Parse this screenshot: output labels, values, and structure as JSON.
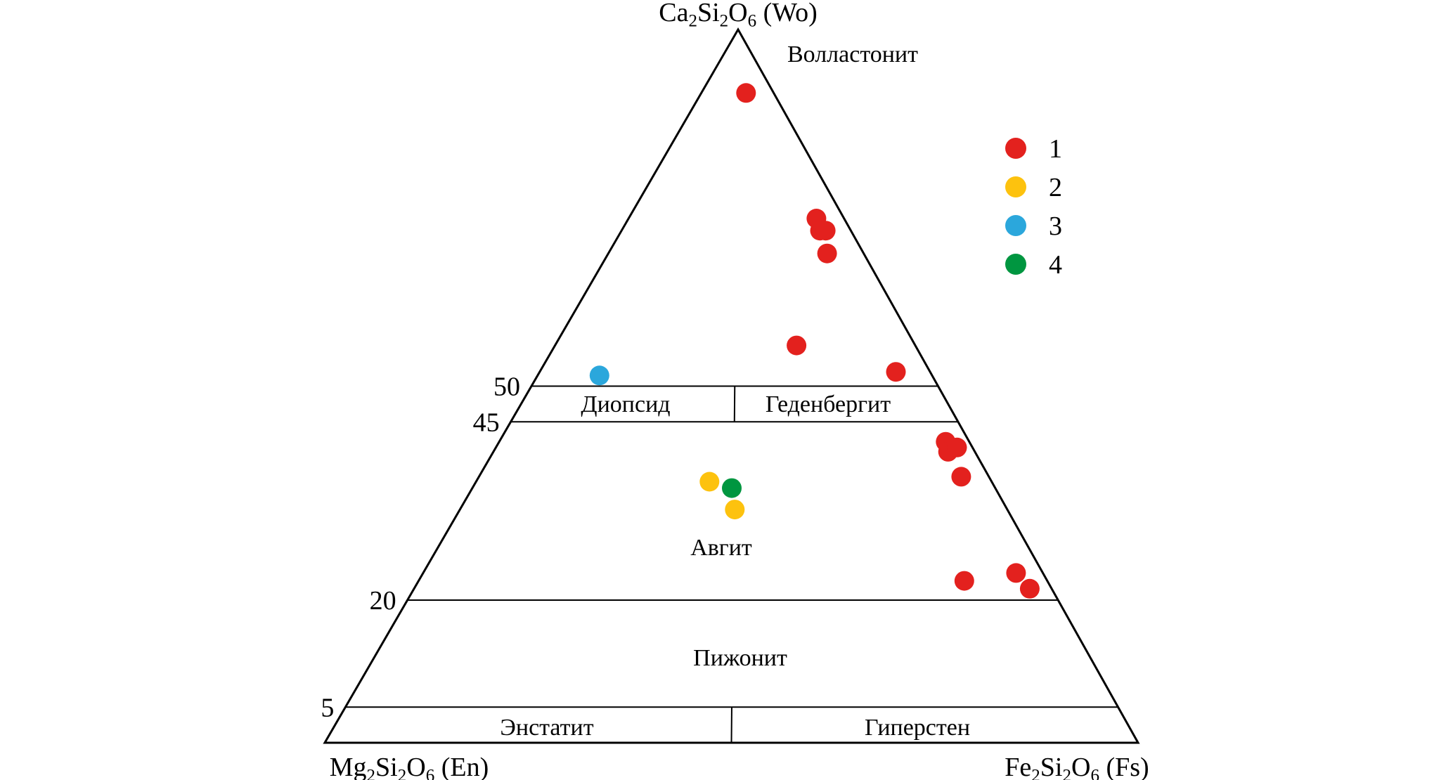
{
  "figure": {
    "background": "#ffffff",
    "text_color": "#000000",
    "line_color": "#000000"
  },
  "chart_data": {
    "type": "scatter",
    "subtype": "ternary",
    "description": "Pyroxene composition ternary diagram Wo-En-Fs",
    "vertices": {
      "top": {
        "text": "Ca2Si2O6 (Wo)",
        "parts": [
          {
            "t": "Ca"
          },
          {
            "t": "2",
            "sub": true
          },
          {
            "t": "Si"
          },
          {
            "t": "2",
            "sub": true
          },
          {
            "t": "O"
          },
          {
            "t": "6",
            "sub": true
          },
          {
            "t": " (Wo)"
          }
        ]
      },
      "left": {
        "text": "Mg2Si2O6 (En)",
        "parts": [
          {
            "t": "Mg"
          },
          {
            "t": "2",
            "sub": true
          },
          {
            "t": "Si"
          },
          {
            "t": "2",
            "sub": true
          },
          {
            "t": "O"
          },
          {
            "t": "6",
            "sub": true
          },
          {
            "t": " (En)"
          }
        ]
      },
      "right": {
        "text": "Fe2Si2O6 (Fs)",
        "parts": [
          {
            "t": "Fe"
          },
          {
            "t": "2",
            "sub": true
          },
          {
            "t": "Si"
          },
          {
            "t": "2",
            "sub": true
          },
          {
            "t": "O"
          },
          {
            "t": "6",
            "sub": true
          },
          {
            "t": " (Fs)"
          }
        ]
      }
    },
    "wo_gridlines": [
      50,
      45,
      20,
      5
    ],
    "boundaries": [
      {
        "from": {
          "wo": 50,
          "en": 25,
          "fs": 25
        },
        "to": {
          "wo": 45,
          "en": 27.5,
          "fs": 27.5
        }
      },
      {
        "from": {
          "wo": 5,
          "en": 47.5,
          "fs": 47.5
        },
        "to": {
          "wo": 0,
          "en": 50,
          "fs": 50
        }
      }
    ],
    "regions": [
      {
        "id": "wollastonite",
        "label": "Волластонит"
      },
      {
        "id": "diopside",
        "label": "Диопсид"
      },
      {
        "id": "hedenbergite",
        "label": "Геденбергит"
      },
      {
        "id": "augite",
        "label": "Авгит"
      },
      {
        "id": "pigeonite",
        "label": "Пижонит"
      },
      {
        "id": "enstatite",
        "label": "Энстатит"
      },
      {
        "id": "hypersthene",
        "label": "Гиперстен"
      }
    ],
    "legend": {
      "items": [
        {
          "label": "1",
          "color": "#e3211e"
        },
        {
          "label": "2",
          "color": "#fdc20e"
        },
        {
          "label": "3",
          "color": "#2ba7dc"
        },
        {
          "label": "4",
          "color": "#009640"
        }
      ]
    },
    "series": [
      {
        "name": "1",
        "color": "#e3211e",
        "points": [
          {
            "wo": 91.1,
            "en": 3.4,
            "fs": 5.5
          },
          {
            "wo": 73.5,
            "en": 3.4,
            "fs": 23.1
          },
          {
            "wo": 71.8,
            "en": 3.8,
            "fs": 24.4
          },
          {
            "wo": 71.8,
            "en": 3.1,
            "fs": 25.1
          },
          {
            "wo": 68.6,
            "en": 4.5,
            "fs": 26.9
          },
          {
            "wo": 55.7,
            "en": 14.6,
            "fs": 29.7
          },
          {
            "wo": 52.0,
            "en": 4.2,
            "fs": 43.8
          },
          {
            "wo": 42.2,
            "en": 2.9,
            "fs": 54.9
          },
          {
            "wo": 40.8,
            "en": 3.3,
            "fs": 55.9
          },
          {
            "wo": 41.4,
            "en": 1.9,
            "fs": 56.7
          },
          {
            "wo": 37.3,
            "en": 3.4,
            "fs": 59.3
          },
          {
            "wo": 22.7,
            "en": 10.2,
            "fs": 67.1
          },
          {
            "wo": 23.8,
            "en": 3.3,
            "fs": 72.9
          },
          {
            "wo": 21.6,
            "en": 2.7,
            "fs": 75.7
          }
        ]
      },
      {
        "name": "2",
        "color": "#fdc20e",
        "points": [
          {
            "wo": 36.6,
            "en": 34.7,
            "fs": 28.7
          },
          {
            "wo": 32.7,
            "en": 33.5,
            "fs": 33.8
          }
        ]
      },
      {
        "name": "3",
        "color": "#2ba7dc",
        "points": [
          {
            "wo": 51.5,
            "en": 40.9,
            "fs": 7.6
          }
        ]
      },
      {
        "name": "4",
        "color": "#009640",
        "points": [
          {
            "wo": 35.7,
            "en": 32.4,
            "fs": 31.9
          }
        ]
      }
    ]
  }
}
